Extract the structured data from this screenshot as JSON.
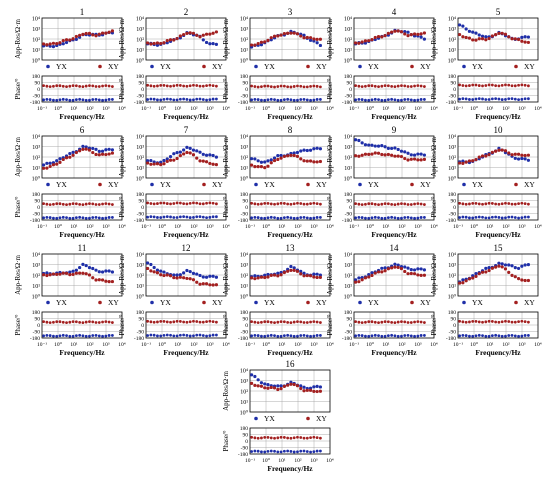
{
  "colors": {
    "yx": "#1f2fa8",
    "xy": "#a32020",
    "frame": "#000000",
    "grid": "#9a9a9a"
  },
  "labels": {
    "app_res_axis": "App-Res/Ω·m",
    "phase_axis": "Phase/°",
    "frequency_axis": "Frequency/Hz",
    "series_yx": "YX",
    "series_xy": "XY"
  },
  "chart_data": {
    "type": "scatter",
    "x_scale": "log",
    "x_ticks": [
      "10⁻¹",
      "10⁰",
      "10¹",
      "10²",
      "10³",
      "10⁴"
    ],
    "resistivity_ticks": [
      "10⁴",
      "10³",
      "10²",
      "10¹",
      "10⁰"
    ],
    "phase_ticks": [
      "180",
      "90",
      "0",
      "-90",
      "-180"
    ],
    "xlim_log10": [
      -1,
      4
    ],
    "resistivity_ylim_log10": [
      0,
      4
    ],
    "phase_ylim": [
      -180,
      180
    ],
    "series_names": [
      "YX",
      "XY"
    ],
    "panels": [
      {
        "id": "1",
        "yx_res": [
          [
            -0.9,
            1.3
          ],
          [
            0.0,
            1.4
          ],
          [
            0.8,
            1.8
          ],
          [
            1.6,
            2.4
          ],
          [
            2.4,
            2.4
          ],
          [
            3.4,
            2.6
          ]
        ],
        "xy_res": [
          [
            -0.9,
            1.5
          ],
          [
            0.0,
            1.6
          ],
          [
            0.8,
            2.0
          ],
          [
            1.6,
            2.5
          ],
          [
            2.4,
            2.4
          ],
          [
            3.4,
            2.7
          ]
        ],
        "yx_phase": -150,
        "xy_phase": 40
      },
      {
        "id": "2",
        "yx_res": [
          [
            -0.9,
            1.5
          ],
          [
            0.0,
            1.5
          ],
          [
            0.8,
            1.9
          ],
          [
            1.6,
            2.6
          ],
          [
            2.4,
            2.2
          ],
          [
            3.0,
            1.5
          ]
        ],
        "xy_res": [
          [
            -0.9,
            1.6
          ],
          [
            0.0,
            1.6
          ],
          [
            0.8,
            2.0
          ],
          [
            1.6,
            2.6
          ],
          [
            2.4,
            2.3
          ],
          [
            3.4,
            2.6
          ]
        ],
        "yx_phase": -145,
        "xy_phase": 45
      },
      {
        "id": "3",
        "yx_res": [
          [
            -0.9,
            1.2
          ],
          [
            0.0,
            1.7
          ],
          [
            0.8,
            2.3
          ],
          [
            1.6,
            2.7
          ],
          [
            2.4,
            2.3
          ],
          [
            3.4,
            1.4
          ]
        ],
        "xy_res": [
          [
            -0.9,
            1.4
          ],
          [
            0.0,
            1.8
          ],
          [
            0.8,
            2.4
          ],
          [
            1.6,
            2.6
          ],
          [
            2.4,
            2.2
          ],
          [
            3.4,
            1.9
          ]
        ],
        "yx_phase": -150,
        "xy_phase": 35
      },
      {
        "id": "4",
        "yx_res": [
          [
            -0.9,
            1.5
          ],
          [
            0.0,
            1.8
          ],
          [
            0.8,
            2.2
          ],
          [
            1.6,
            2.8
          ],
          [
            2.4,
            2.6
          ],
          [
            3.4,
            2.0
          ]
        ],
        "xy_res": [
          [
            -0.9,
            1.6
          ],
          [
            0.0,
            1.9
          ],
          [
            0.8,
            2.3
          ],
          [
            1.6,
            2.8
          ],
          [
            2.4,
            2.4
          ],
          [
            3.4,
            2.5
          ]
        ],
        "yx_phase": -150,
        "xy_phase": 40
      },
      {
        "id": "5",
        "yx_res": [
          [
            -0.9,
            3.3
          ],
          [
            0.0,
            2.6
          ],
          [
            0.8,
            2.1
          ],
          [
            1.6,
            2.6
          ],
          [
            2.4,
            2.0
          ],
          [
            3.4,
            2.2
          ]
        ],
        "xy_res": [
          [
            -0.9,
            2.4
          ],
          [
            0.0,
            1.9
          ],
          [
            0.8,
            2.0
          ],
          [
            1.6,
            2.6
          ],
          [
            2.4,
            2.1
          ],
          [
            3.4,
            1.6
          ]
        ],
        "yx_phase": -140,
        "xy_phase": 50
      },
      {
        "id": "6",
        "yx_res": [
          [
            -0.9,
            1.2
          ],
          [
            0.0,
            1.7
          ],
          [
            0.8,
            2.3
          ],
          [
            1.6,
            3.0
          ],
          [
            2.6,
            2.6
          ],
          [
            3.4,
            2.7
          ]
        ],
        "xy_res": [
          [
            -0.9,
            0.9
          ],
          [
            0.0,
            1.4
          ],
          [
            0.8,
            2.1
          ],
          [
            1.6,
            2.8
          ],
          [
            2.6,
            2.2
          ],
          [
            3.4,
            2.3
          ]
        ],
        "yx_phase": -150,
        "xy_phase": 40
      },
      {
        "id": "7",
        "yx_res": [
          [
            -0.9,
            1.6
          ],
          [
            0.0,
            1.5
          ],
          [
            0.8,
            2.3
          ],
          [
            1.6,
            2.9
          ],
          [
            2.4,
            2.4
          ],
          [
            3.4,
            2.0
          ]
        ],
        "xy_res": [
          [
            -0.9,
            1.4
          ],
          [
            0.0,
            1.3
          ],
          [
            0.8,
            1.8
          ],
          [
            1.6,
            2.5
          ],
          [
            2.4,
            1.7
          ],
          [
            3.4,
            1.2
          ]
        ],
        "yx_phase": -140,
        "xy_phase": 50
      },
      {
        "id": "8",
        "yx_res": [
          [
            -0.9,
            1.8
          ],
          [
            0.0,
            1.5
          ],
          [
            0.8,
            2.1
          ],
          [
            1.6,
            2.3
          ],
          [
            2.6,
            2.7
          ],
          [
            3.4,
            2.8
          ]
        ],
        "xy_res": [
          [
            -0.9,
            1.2
          ],
          [
            0.0,
            1.0
          ],
          [
            0.8,
            1.9
          ],
          [
            1.6,
            2.2
          ],
          [
            2.6,
            1.6
          ],
          [
            3.4,
            1.5
          ]
        ],
        "yx_phase": -150,
        "xy_phase": 45
      },
      {
        "id": "9",
        "yx_res": [
          [
            -0.9,
            3.6
          ],
          [
            0.0,
            3.1
          ],
          [
            0.8,
            3.0
          ],
          [
            1.6,
            2.8
          ],
          [
            2.4,
            2.3
          ],
          [
            3.4,
            2.2
          ]
        ],
        "xy_res": [
          [
            -0.9,
            2.1
          ],
          [
            0.0,
            2.3
          ],
          [
            0.8,
            2.3
          ],
          [
            1.6,
            2.1
          ],
          [
            2.4,
            1.8
          ],
          [
            3.4,
            1.7
          ]
        ],
        "yx_phase": -150,
        "xy_phase": 40
      },
      {
        "id": "10",
        "yx_res": [
          [
            -0.9,
            1.5
          ],
          [
            0.0,
            1.6
          ],
          [
            0.8,
            2.2
          ],
          [
            1.6,
            2.8
          ],
          [
            2.4,
            2.0
          ],
          [
            3.4,
            1.7
          ]
        ],
        "xy_res": [
          [
            -0.9,
            1.4
          ],
          [
            0.0,
            1.7
          ],
          [
            0.8,
            2.2
          ],
          [
            1.6,
            2.7
          ],
          [
            2.4,
            2.3
          ],
          [
            3.4,
            2.1
          ]
        ],
        "yx_phase": -145,
        "xy_phase": 45
      },
      {
        "id": "11",
        "yx_res": [
          [
            -0.9,
            2.1
          ],
          [
            0.0,
            2.2
          ],
          [
            0.8,
            2.2
          ],
          [
            1.6,
            3.0
          ],
          [
            2.4,
            2.4
          ],
          [
            3.4,
            2.3
          ]
        ],
        "xy_res": [
          [
            -0.9,
            2.0
          ],
          [
            0.0,
            2.1
          ],
          [
            0.8,
            2.1
          ],
          [
            1.6,
            2.2
          ],
          [
            2.4,
            1.6
          ],
          [
            3.4,
            1.3
          ]
        ],
        "yx_phase": -150,
        "xy_phase": 40
      },
      {
        "id": "12",
        "yx_res": [
          [
            -0.9,
            3.1
          ],
          [
            0.0,
            2.3
          ],
          [
            0.8,
            1.9
          ],
          [
            1.6,
            2.4
          ],
          [
            2.4,
            1.9
          ],
          [
            3.4,
            1.8
          ]
        ],
        "xy_res": [
          [
            -0.9,
            2.6
          ],
          [
            0.0,
            2.0
          ],
          [
            0.8,
            1.8
          ],
          [
            1.6,
            1.7
          ],
          [
            2.4,
            1.2
          ],
          [
            3.4,
            1.0
          ]
        ],
        "yx_phase": -145,
        "xy_phase": 45
      },
      {
        "id": "13",
        "yx_res": [
          [
            -0.9,
            1.8
          ],
          [
            0.0,
            2.0
          ],
          [
            0.8,
            2.1
          ],
          [
            1.6,
            2.8
          ],
          [
            2.4,
            2.1
          ],
          [
            3.4,
            2.0
          ]
        ],
        "xy_res": [
          [
            -0.9,
            1.7
          ],
          [
            0.0,
            1.8
          ],
          [
            0.8,
            2.0
          ],
          [
            1.6,
            2.5
          ],
          [
            2.4,
            2.0
          ],
          [
            3.4,
            1.7
          ]
        ],
        "yx_phase": -150,
        "xy_phase": 40
      },
      {
        "id": "14",
        "yx_res": [
          [
            -0.9,
            1.5
          ],
          [
            0.0,
            2.1
          ],
          [
            0.8,
            2.6
          ],
          [
            1.6,
            3.0
          ],
          [
            2.4,
            2.6
          ],
          [
            3.4,
            2.5
          ]
        ],
        "xy_res": [
          [
            -0.9,
            1.3
          ],
          [
            0.0,
            1.9
          ],
          [
            0.8,
            2.4
          ],
          [
            1.6,
            2.8
          ],
          [
            2.4,
            2.2
          ],
          [
            3.4,
            1.9
          ]
        ],
        "yx_phase": -150,
        "xy_phase": 40
      },
      {
        "id": "15",
        "yx_res": [
          [
            -0.9,
            1.3
          ],
          [
            0.0,
            2.0
          ],
          [
            0.8,
            2.6
          ],
          [
            1.6,
            3.1
          ],
          [
            2.8,
            2.7
          ],
          [
            3.4,
            3.0
          ]
        ],
        "xy_res": [
          [
            -0.9,
            1.2
          ],
          [
            0.0,
            1.8
          ],
          [
            0.8,
            2.4
          ],
          [
            1.6,
            2.9
          ],
          [
            2.8,
            1.6
          ],
          [
            3.4,
            1.4
          ]
        ],
        "yx_phase": -150,
        "xy_phase": 45
      },
      {
        "id": "16",
        "yx_res": [
          [
            -0.9,
            3.5
          ],
          [
            0.0,
            2.6
          ],
          [
            0.8,
            2.4
          ],
          [
            1.6,
            2.8
          ],
          [
            2.4,
            2.3
          ],
          [
            3.4,
            2.4
          ]
        ],
        "xy_res": [
          [
            -0.9,
            2.7
          ],
          [
            0.0,
            2.3
          ],
          [
            0.8,
            2.2
          ],
          [
            1.6,
            2.7
          ],
          [
            2.4,
            2.1
          ],
          [
            3.4,
            1.9
          ]
        ],
        "yx_phase": -145,
        "xy_phase": 45
      }
    ]
  }
}
